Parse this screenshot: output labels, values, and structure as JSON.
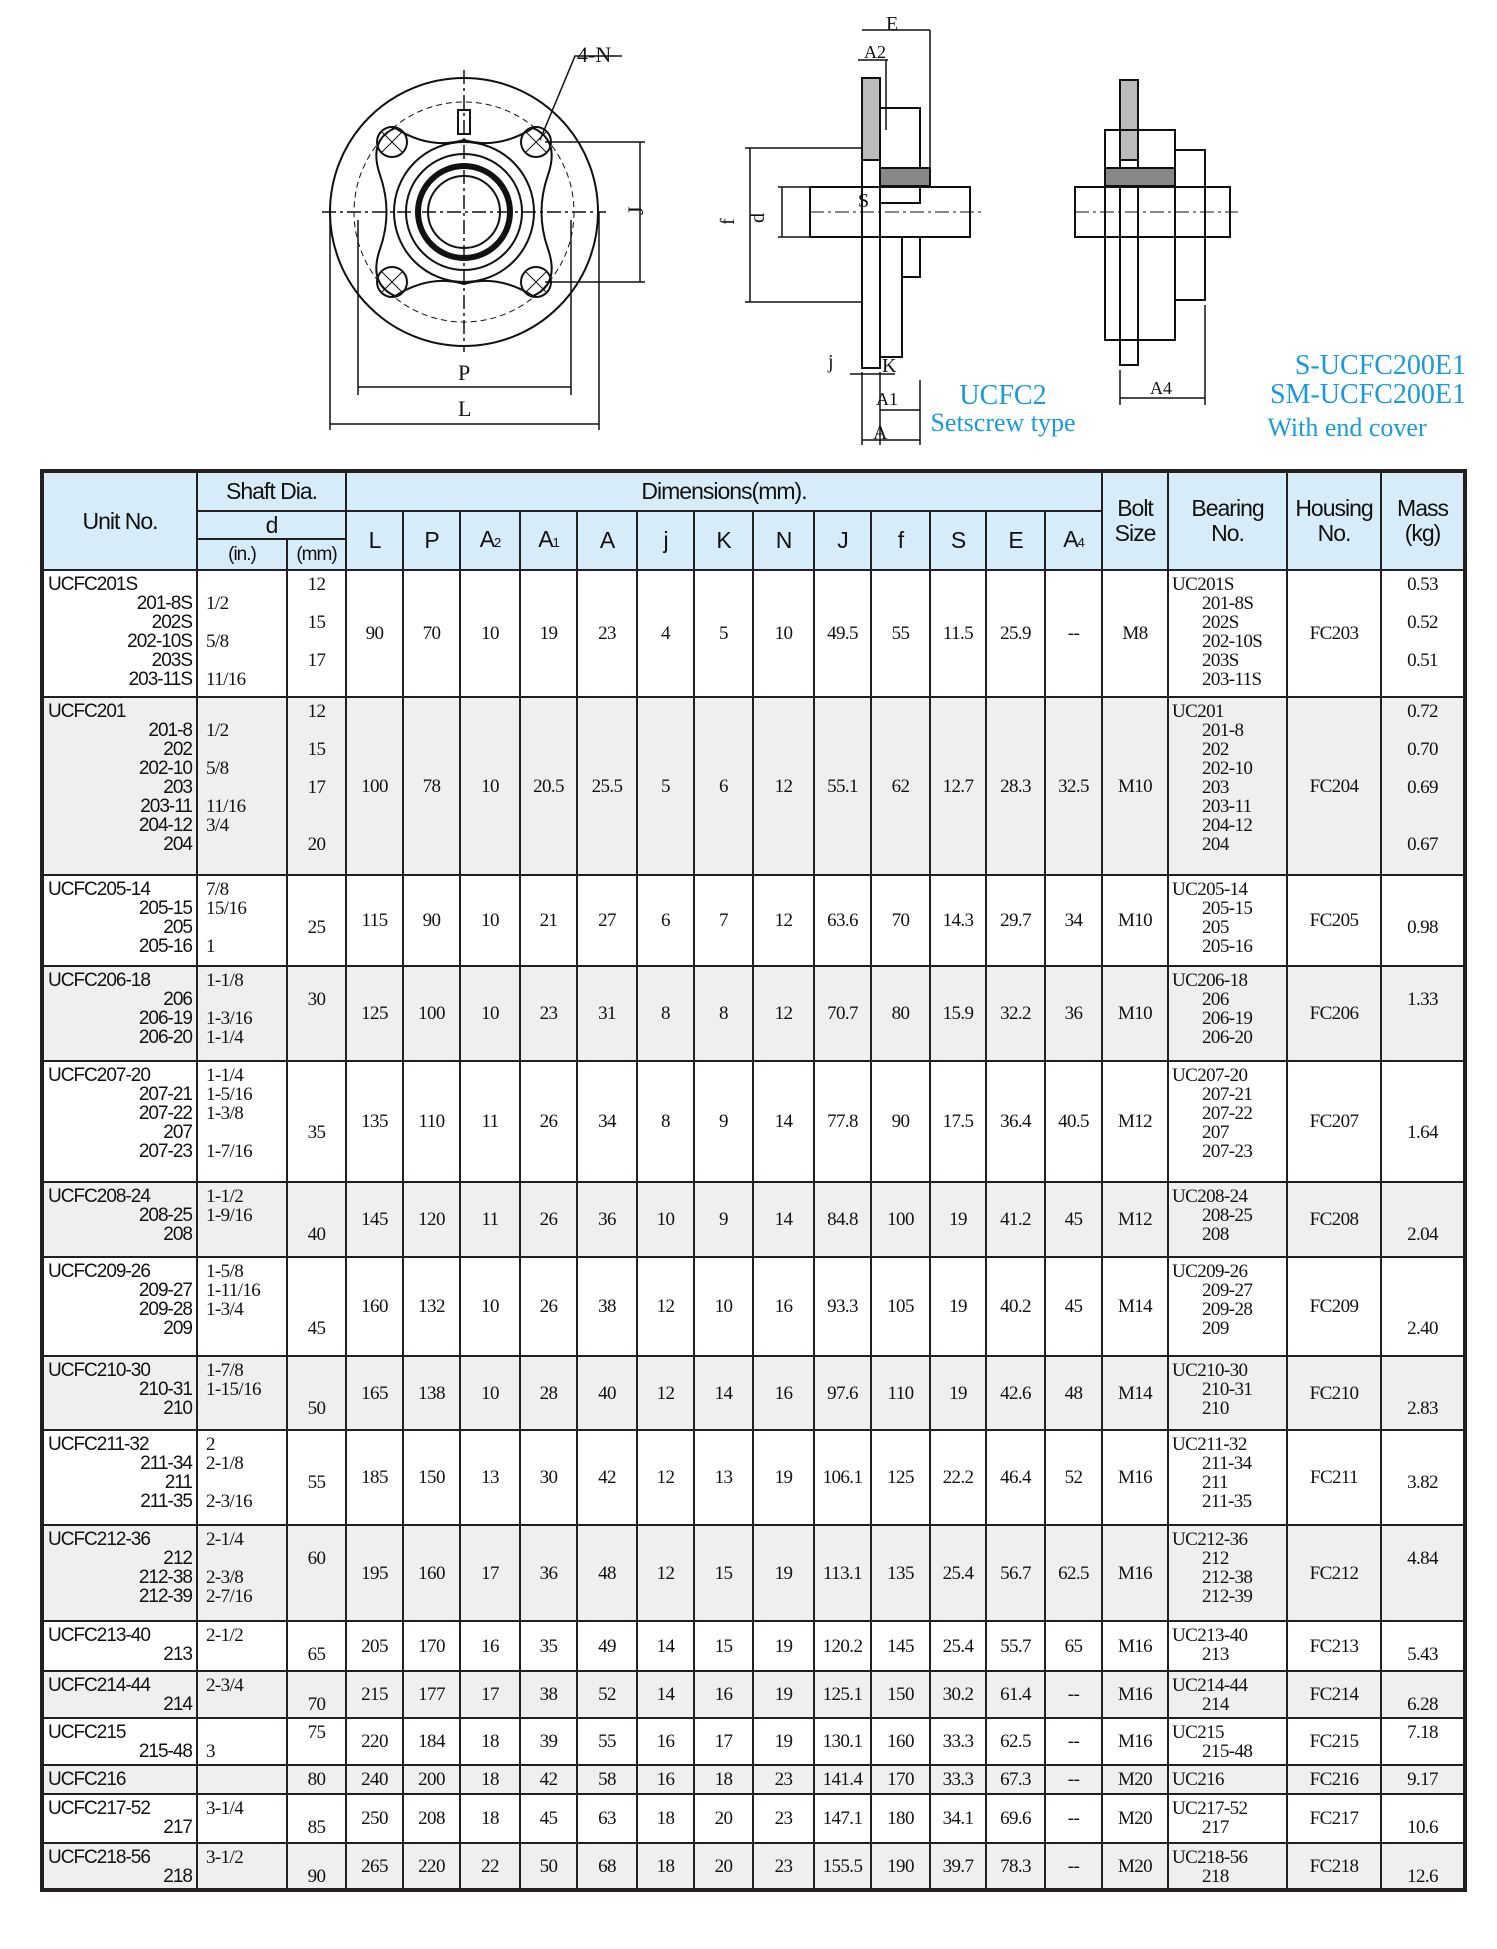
{
  "drawing": {
    "front_view": {
      "label_4n": "4-N",
      "label_j": "J",
      "label_p": "P",
      "label_l": "L"
    },
    "side_view": {
      "label_e": "E",
      "label_a2": "A2",
      "label_s": "S",
      "label_f": "f",
      "label_d": "d",
      "label_j": "j",
      "label_k": "K",
      "label_a1": "A1",
      "label_a": "A"
    },
    "cover_view": {
      "label_a4": "A4"
    },
    "caption_setscrew": {
      "model": "UCFC2",
      "type": "Setscrew type"
    },
    "caption_cover": {
      "model1": "S-UCFC200E1",
      "model2": "SM-UCFC200E1",
      "type": "With end cover"
    },
    "accent_color": "#1a9ad6"
  },
  "table": {
    "headers": {
      "unit_no": "Unit No.",
      "shaft_dia": "Shaft Dia.",
      "d": "d",
      "in": "(in.)",
      "mm": "(mm)",
      "dimensions": "Dimensions(mm).",
      "dims": [
        {
          "base": "L",
          "sub": ""
        },
        {
          "base": "P",
          "sub": ""
        },
        {
          "base": "A",
          "sub": "2"
        },
        {
          "base": "A",
          "sub": "1"
        },
        {
          "base": "A",
          "sub": ""
        },
        {
          "base": "j",
          "sub": ""
        },
        {
          "base": "K",
          "sub": ""
        },
        {
          "base": "N",
          "sub": ""
        },
        {
          "base": "J",
          "sub": ""
        },
        {
          "base": "f",
          "sub": ""
        },
        {
          "base": "S",
          "sub": ""
        },
        {
          "base": "E",
          "sub": ""
        },
        {
          "base": "A",
          "sub": "4"
        }
      ],
      "bolt_size": "Bolt\nSize",
      "bearing_no": "Bearing\nNo.",
      "housing_no": "Housing\nNo.",
      "mass": "Mass\n(kg)"
    },
    "rows": [
      {
        "unit": [
          "UCFC201S",
          "201-8S",
          "202S",
          "202-10S",
          "203S",
          "203-11S"
        ],
        "in": [
          "",
          "1/2",
          "",
          "5/8",
          "",
          "11/16"
        ],
        "mm": [
          "12",
          "",
          "15",
          "",
          "17",
          ""
        ],
        "dims": [
          "90",
          "70",
          "10",
          "19",
          "23",
          "4",
          "5",
          "10",
          "49.5",
          "55",
          "11.5",
          "25.9",
          "--"
        ],
        "bolt": "M8",
        "bearing": [
          "UC201S",
          "201-8S",
          "202S",
          "202-10S",
          "203S",
          "203-11S"
        ],
        "housing": "FC203",
        "mass": [
          "0.53",
          "",
          "0.52",
          "",
          "0.51",
          ""
        ]
      },
      {
        "unit": [
          "UCFC201",
          "201-8",
          "202",
          "202-10",
          "203",
          "203-11",
          "204-12",
          "204"
        ],
        "in": [
          "",
          "1/2",
          "",
          "5/8",
          "",
          "11/16",
          "3/4",
          ""
        ],
        "mm": [
          "12",
          "",
          "15",
          "",
          "17",
          "",
          "",
          "20"
        ],
        "dims": [
          "100",
          "78",
          "10",
          "20.5",
          "25.5",
          "5",
          "6",
          "12",
          "55.1",
          "62",
          "12.7",
          "28.3",
          "32.5"
        ],
        "bolt": "M10",
        "bearing": [
          "UC201",
          "201-8",
          "202",
          "202-10",
          "203",
          "203-11",
          "204-12",
          "204"
        ],
        "housing": "FC204",
        "mass": [
          "0.72",
          "",
          "0.70",
          "",
          "0.69",
          "",
          "",
          "0.67"
        ]
      },
      {
        "unit": [
          "UCFC205-14",
          "205-15",
          "205",
          "205-16"
        ],
        "in": [
          "7/8",
          "15/16",
          "",
          "1"
        ],
        "mm": [
          "",
          "",
          "25",
          ""
        ],
        "dims": [
          "115",
          "90",
          "10",
          "21",
          "27",
          "6",
          "7",
          "12",
          "63.6",
          "70",
          "14.3",
          "29.7",
          "34"
        ],
        "bolt": "M10",
        "bearing": [
          "UC205-14",
          "205-15",
          "205",
          "205-16"
        ],
        "housing": "FC205",
        "mass": [
          "",
          "",
          "0.98",
          ""
        ]
      },
      {
        "unit": [
          "UCFC206-18",
          "206",
          "206-19",
          "206-20"
        ],
        "in": [
          "1-1/8",
          "",
          "1-3/16",
          "1-1/4"
        ],
        "mm": [
          "",
          "30",
          "",
          ""
        ],
        "dims": [
          "125",
          "100",
          "10",
          "23",
          "31",
          "8",
          "8",
          "12",
          "70.7",
          "80",
          "15.9",
          "32.2",
          "36"
        ],
        "bolt": "M10",
        "bearing": [
          "UC206-18",
          "206",
          "206-19",
          "206-20"
        ],
        "housing": "FC206",
        "mass": [
          "",
          "1.33",
          "",
          ""
        ]
      },
      {
        "unit": [
          "UCFC207-20",
          "207-21",
          "207-22",
          "207",
          "207-23"
        ],
        "in": [
          "1-1/4",
          "1-5/16",
          "1-3/8",
          "",
          "1-7/16"
        ],
        "mm": [
          "",
          "",
          "",
          "35",
          ""
        ],
        "dims": [
          "135",
          "110",
          "11",
          "26",
          "34",
          "8",
          "9",
          "14",
          "77.8",
          "90",
          "17.5",
          "36.4",
          "40.5"
        ],
        "bolt": "M12",
        "bearing": [
          "UC207-20",
          "207-21",
          "207-22",
          "207",
          "207-23"
        ],
        "housing": "FC207",
        "mass": [
          "",
          "",
          "",
          "1.64",
          ""
        ]
      },
      {
        "unit": [
          "UCFC208-24",
          "208-25",
          "208"
        ],
        "in": [
          "1-1/2",
          "1-9/16",
          ""
        ],
        "mm": [
          "",
          "",
          "40"
        ],
        "dims": [
          "145",
          "120",
          "11",
          "26",
          "36",
          "10",
          "9",
          "14",
          "84.8",
          "100",
          "19",
          "41.2",
          "45"
        ],
        "bolt": "M12",
        "bearing": [
          "UC208-24",
          "208-25",
          "208"
        ],
        "housing": "FC208",
        "mass": [
          "",
          "",
          "2.04"
        ]
      },
      {
        "unit": [
          "UCFC209-26",
          "209-27",
          "209-28",
          "209"
        ],
        "in": [
          "1-5/8",
          "1-11/16",
          "1-3/4",
          ""
        ],
        "mm": [
          "",
          "",
          "",
          "45"
        ],
        "dims": [
          "160",
          "132",
          "10",
          "26",
          "38",
          "12",
          "10",
          "16",
          "93.3",
          "105",
          "19",
          "40.2",
          "45"
        ],
        "bolt": "M14",
        "bearing": [
          "UC209-26",
          "209-27",
          "209-28",
          "209"
        ],
        "housing": "FC209",
        "mass": [
          "",
          "",
          "",
          "2.40"
        ]
      },
      {
        "unit": [
          "UCFC210-30",
          "210-31",
          "210"
        ],
        "in": [
          "1-7/8",
          "1-15/16",
          ""
        ],
        "mm": [
          "",
          "",
          "50"
        ],
        "dims": [
          "165",
          "138",
          "10",
          "28",
          "40",
          "12",
          "14",
          "16",
          "97.6",
          "110",
          "19",
          "42.6",
          "48"
        ],
        "bolt": "M14",
        "bearing": [
          "UC210-30",
          "210-31",
          "210"
        ],
        "housing": "FC210",
        "mass": [
          "",
          "",
          "2.83"
        ]
      },
      {
        "unit": [
          "UCFC211-32",
          "211-34",
          "211",
          "211-35"
        ],
        "in": [
          "2",
          "2-1/8",
          "",
          "2-3/16"
        ],
        "mm": [
          "",
          "",
          "55",
          ""
        ],
        "dims": [
          "185",
          "150",
          "13",
          "30",
          "42",
          "12",
          "13",
          "19",
          "106.1",
          "125",
          "22.2",
          "46.4",
          "52"
        ],
        "bolt": "M16",
        "bearing": [
          "UC211-32",
          "211-34",
          "211",
          "211-35"
        ],
        "housing": "FC211",
        "mass": [
          "",
          "",
          "3.82",
          ""
        ]
      },
      {
        "unit": [
          "UCFC212-36",
          "212",
          "212-38",
          "212-39"
        ],
        "in": [
          "2-1/4",
          "",
          "2-3/8",
          "2-7/16"
        ],
        "mm": [
          "",
          "60",
          "",
          ""
        ],
        "dims": [
          "195",
          "160",
          "17",
          "36",
          "48",
          "12",
          "15",
          "19",
          "113.1",
          "135",
          "25.4",
          "56.7",
          "62.5"
        ],
        "bolt": "M16",
        "bearing": [
          "UC212-36",
          "212",
          "212-38",
          "212-39"
        ],
        "housing": "FC212",
        "mass": [
          "",
          "4.84",
          "",
          ""
        ]
      },
      {
        "unit": [
          "UCFC213-40",
          "213"
        ],
        "in": [
          "2-1/2",
          ""
        ],
        "mm": [
          "",
          "65"
        ],
        "dims": [
          "205",
          "170",
          "16",
          "35",
          "49",
          "14",
          "15",
          "19",
          "120.2",
          "145",
          "25.4",
          "55.7",
          "65"
        ],
        "bolt": "M16",
        "bearing": [
          "UC213-40",
          "213"
        ],
        "housing": "FC213",
        "mass": [
          "",
          "5.43"
        ]
      },
      {
        "unit": [
          "UCFC214-44",
          "214"
        ],
        "in": [
          "2-3/4",
          ""
        ],
        "mm": [
          "",
          "70"
        ],
        "dims": [
          "215",
          "177",
          "17",
          "38",
          "52",
          "14",
          "16",
          "19",
          "125.1",
          "150",
          "30.2",
          "61.4",
          "--"
        ],
        "bolt": "M16",
        "bearing": [
          "UC214-44",
          "214"
        ],
        "housing": "FC214",
        "mass": [
          "",
          "6.28"
        ]
      },
      {
        "unit": [
          "UCFC215",
          "215-48"
        ],
        "in": [
          "",
          "3"
        ],
        "mm": [
          "75",
          ""
        ],
        "dims": [
          "220",
          "184",
          "18",
          "39",
          "55",
          "16",
          "17",
          "19",
          "130.1",
          "160",
          "33.3",
          "62.5",
          "--"
        ],
        "bolt": "M16",
        "bearing": [
          "UC215",
          "215-48"
        ],
        "housing": "FC215",
        "mass": [
          "7.18",
          ""
        ]
      },
      {
        "unit": [
          "UCFC216"
        ],
        "in": [
          ""
        ],
        "mm": [
          "80"
        ],
        "dims": [
          "240",
          "200",
          "18",
          "42",
          "58",
          "16",
          "18",
          "23",
          "141.4",
          "170",
          "33.3",
          "67.3",
          "--"
        ],
        "bolt": "M20",
        "bearing": [
          "UC216"
        ],
        "housing": "FC216",
        "mass": [
          "9.17"
        ]
      },
      {
        "unit": [
          "UCFC217-52",
          "217"
        ],
        "in": [
          "3-1/4",
          ""
        ],
        "mm": [
          "",
          "85"
        ],
        "dims": [
          "250",
          "208",
          "18",
          "45",
          "63",
          "18",
          "20",
          "23",
          "147.1",
          "180",
          "34.1",
          "69.6",
          "--"
        ],
        "bolt": "M20",
        "bearing": [
          "UC217-52",
          "217"
        ],
        "housing": "FC217",
        "mass": [
          "",
          "10.6"
        ]
      },
      {
        "unit": [
          "UCFC218-56",
          "218"
        ],
        "in": [
          "3-1/2",
          ""
        ],
        "mm": [
          "",
          "90"
        ],
        "dims": [
          "265",
          "220",
          "22",
          "50",
          "68",
          "18",
          "20",
          "23",
          "155.5",
          "190",
          "39.7",
          "78.3",
          "--"
        ],
        "bolt": "M20",
        "bearing": [
          "UC218-56",
          "218"
        ],
        "housing": "FC218",
        "mass": [
          "",
          "12.6"
        ]
      }
    ]
  }
}
